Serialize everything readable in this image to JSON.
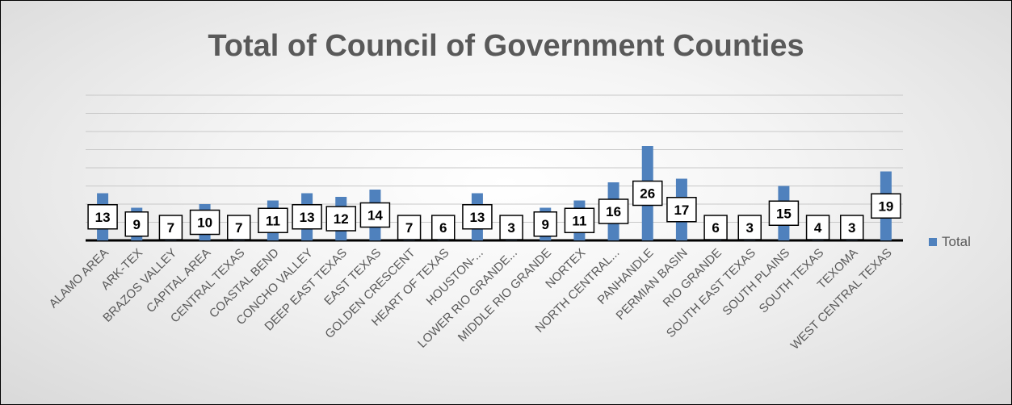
{
  "chart_data": {
    "type": "bar",
    "title": "Total of Council of Government Counties",
    "categories": [
      "ALAMO AREA",
      "ARK-TEX",
      "BRAZOS VALLEY",
      "CAPITAL AREA",
      "CENTRAL TEXAS",
      "COASTAL BEND",
      "CONCHO VALLEY",
      "DEEP EAST TEXAS",
      "EAST TEXAS",
      "GOLDEN CRESCENT",
      "HEART OF TEXAS",
      "HOUSTON-...",
      "LOWER RIO GRANDE...",
      "MIDDLE RIO GRANDE",
      "NORTEX",
      "NORTH CENTRAL...",
      "PANHANDLE",
      "PERMIAN BASIN",
      "RIO GRANDE",
      "SOUTH EAST TEXAS",
      "SOUTH PLAINS",
      "SOUTH TEXAS",
      "TEXOMA",
      "WEST CENTRAL TEXAS"
    ],
    "series": [
      {
        "name": "Total",
        "values": [
          13,
          9,
          7,
          10,
          7,
          11,
          13,
          12,
          14,
          7,
          6,
          13,
          3,
          9,
          11,
          16,
          26,
          17,
          6,
          3,
          15,
          4,
          3,
          19
        ]
      }
    ],
    "ylim": [
      0,
      40
    ],
    "grid": true,
    "legend_position": "right",
    "bar_color": "#4f81bd"
  }
}
